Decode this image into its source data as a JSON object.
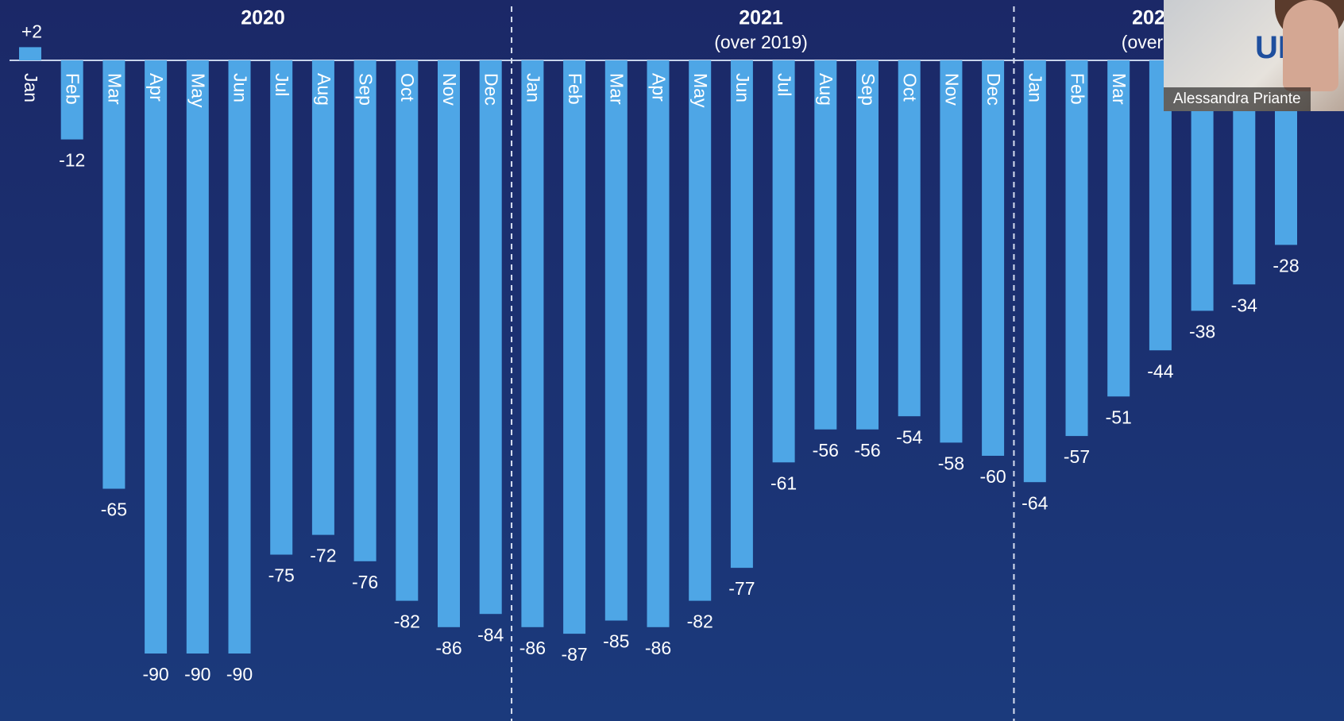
{
  "chart_data": {
    "type": "bar",
    "categories": [
      "Jan",
      "Feb",
      "Mar",
      "Apr",
      "May",
      "Jun",
      "Jul",
      "Aug",
      "Sep",
      "Oct",
      "Nov",
      "Dec",
      "Jan",
      "Feb",
      "Mar",
      "Apr",
      "May",
      "Jun",
      "Jul",
      "Aug",
      "Sep",
      "Oct",
      "Nov",
      "Dec",
      "Jan",
      "Feb",
      "Mar",
      null,
      null,
      null,
      null
    ],
    "values": [
      2,
      -12,
      -65,
      -90,
      -90,
      -90,
      -75,
      -72,
      -76,
      -82,
      -86,
      -84,
      -86,
      -87,
      -85,
      -86,
      -82,
      -77,
      -61,
      -56,
      -56,
      -54,
      -58,
      -60,
      -64,
      -57,
      -51,
      -44,
      -38,
      -34,
      -28
    ],
    "value_labels": [
      "+2",
      "-12",
      "-65",
      "-90",
      "-90",
      "-90",
      "-75",
      "-72",
      "-76",
      "-82",
      "-86",
      "-84",
      "-86",
      "-87",
      "-85",
      "-86",
      "-82",
      "-77",
      "-61",
      "-56",
      "-56",
      "-54",
      "-58",
      "-60",
      "-64",
      "-57",
      "-51",
      "-44",
      "-38",
      "-34",
      "-28"
    ],
    "color": "#4ea6e6",
    "groups": [
      {
        "label": "2020"
      },
      {
        "label": "2021",
        "sublabel": "(over 2019)"
      },
      {
        "label": "202",
        "sublabel": "(over"
      }
    ]
  },
  "webcam": {
    "name": "Alessandra Priante"
  }
}
